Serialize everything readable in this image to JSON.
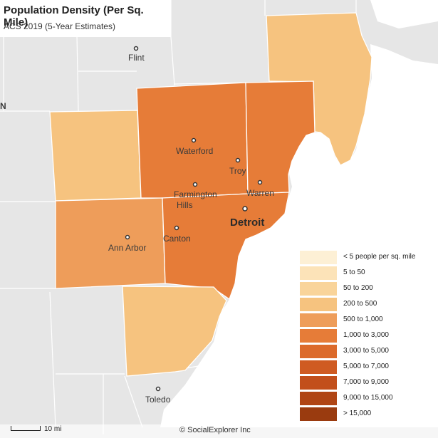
{
  "title": "Population Density (Per Sq. Mile)",
  "subtitle": "ACS 2019 (5-Year Estimates)",
  "colors": {
    "background_land": "#e6e6e6",
    "water": "#ffffff",
    "boundary": "#ffffff"
  },
  "legend": [
    {
      "label": "< 5 people per sq. mile",
      "color": "#fdf0d5"
    },
    {
      "label": "5 to 50",
      "color": "#fce3b8"
    },
    {
      "label": "50 to 200",
      "color": "#f9d49a"
    },
    {
      "label": "200 to 500",
      "color": "#f6c37f"
    },
    {
      "label": "500 to 1,000",
      "color": "#ee9d5a"
    },
    {
      "label": "1,000 to 3,000",
      "color": "#e67c38"
    },
    {
      "label": "3,000 to 5,000",
      "color": "#dc6a2b"
    },
    {
      "label": "5,000 to 7,000",
      "color": "#cf5b22"
    },
    {
      "label": "7,000 to 9,000",
      "color": "#c24f1b"
    },
    {
      "label": "9,000 to 15,000",
      "color": "#b04514"
    },
    {
      "label": "> 15,000",
      "color": "#9a3b0f"
    }
  ],
  "places": [
    {
      "name": "Flint"
    },
    {
      "name": "Waterford"
    },
    {
      "name": "Troy"
    },
    {
      "name": "Farmington"
    },
    {
      "name": "Hills"
    },
    {
      "name": "Warren"
    },
    {
      "name": "Detroit"
    },
    {
      "name": "Ann Arbor"
    },
    {
      "name": "Canton"
    },
    {
      "name": "Toledo"
    }
  ],
  "edge_label": "N",
  "scale_label": "10 mi",
  "credit": "© SocialExplorer Inc"
}
